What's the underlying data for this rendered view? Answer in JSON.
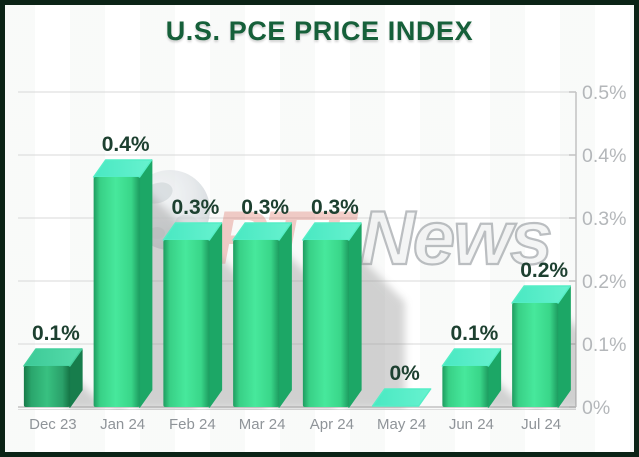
{
  "title": "U.S. PCE PRICE INDEX",
  "watermark": {
    "brand_red": "RTT",
    "brand_gray": "News",
    "globe": "globe-icon"
  },
  "chart_data": {
    "type": "bar",
    "title": "U.S. PCE PRICE INDEX",
    "categories": [
      "Dec 23",
      "Jan 24",
      "Feb 24",
      "Mar 24",
      "Apr 24",
      "May 24",
      "Jun 24",
      "Jul 24"
    ],
    "values": [
      0.1,
      0.4,
      0.3,
      0.3,
      0.3,
      0,
      0.1,
      0.2
    ],
    "value_labels": [
      "0.1%",
      "0.4%",
      "0.3%",
      "0.3%",
      "0.3%",
      "0%",
      "0.1%",
      "0.2%"
    ],
    "xlabel": "",
    "ylabel": "",
    "ylim": [
      0,
      0.5
    ],
    "y_ticks": [
      "0%",
      "0.1%",
      "0.2%",
      "0.3%",
      "0.4%",
      "0.5%"
    ],
    "grid": true,
    "axis_side": "right",
    "legend": "none",
    "muted_bars": [
      0
    ]
  },
  "colors": {
    "border": "#0b2316",
    "title": "#16603a",
    "value_label": "#1d4030",
    "x_label": "#8f9499",
    "y_label": "#b4b7ba",
    "gridline": "#d8d8d8",
    "axis_line": "#c2c2c2",
    "baseline_shadow": "#dedede",
    "bar_top": "#55eec6",
    "bar_front": "#3bd98c",
    "bar_side": "#1ca766",
    "bar_muted_top": "#45d09d",
    "bar_muted_front": "#2ea76e",
    "bar_muted_side": "#177d4c",
    "shadow": "#8f8f8f",
    "watermark_red": "#d5493a",
    "watermark_gray_stroke": "#9ba0a4",
    "watermark_gray_fill": "#eff0f1"
  }
}
